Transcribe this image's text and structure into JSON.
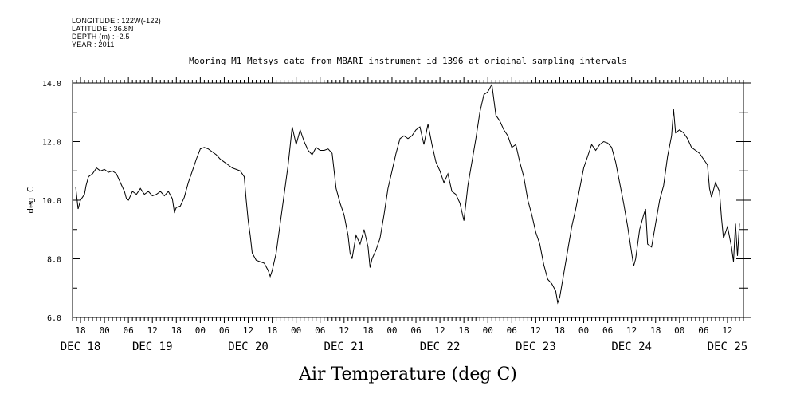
{
  "header": {
    "longitude": "LONGITUDE : 122W(-122)",
    "latitude": "LATITUDE : 36.8N",
    "depth": "DEPTH (m) : -2.5",
    "year": "YEAR : 2011"
  },
  "chart_data": {
    "type": "line",
    "title": "Mooring M1 Metsys data from MBARI instrument id 1396 at original sampling intervals",
    "xlabel": "Air Temperature (deg C)",
    "ylabel": "deg C",
    "x_unit": "hours",
    "x_range": [
      -8,
      160
    ],
    "ylim": [
      6.0,
      14.0
    ],
    "y_ticks": [
      "6.0",
      "8.0",
      "10.0",
      "12.0",
      "14.0"
    ],
    "hour_ticks": [
      {
        "x": -6,
        "label": "18"
      },
      {
        "x": 0,
        "label": "00"
      },
      {
        "x": 6,
        "label": "06"
      },
      {
        "x": 12,
        "label": "12"
      },
      {
        "x": 18,
        "label": "18"
      },
      {
        "x": 24,
        "label": "00"
      },
      {
        "x": 30,
        "label": "06"
      },
      {
        "x": 36,
        "label": "12"
      },
      {
        "x": 42,
        "label": "18"
      },
      {
        "x": 48,
        "label": "00"
      },
      {
        "x": 54,
        "label": "06"
      },
      {
        "x": 60,
        "label": "12"
      },
      {
        "x": 66,
        "label": "18"
      },
      {
        "x": 72,
        "label": "00"
      },
      {
        "x": 78,
        "label": "06"
      },
      {
        "x": 84,
        "label": "12"
      },
      {
        "x": 90,
        "label": "18"
      },
      {
        "x": 96,
        "label": "00"
      },
      {
        "x": 102,
        "label": "06"
      },
      {
        "x": 108,
        "label": "12"
      },
      {
        "x": 114,
        "label": "18"
      },
      {
        "x": 120,
        "label": "00"
      },
      {
        "x": 126,
        "label": "06"
      },
      {
        "x": 132,
        "label": "12"
      },
      {
        "x": 138,
        "label": "18"
      },
      {
        "x": 144,
        "label": "00"
      },
      {
        "x": 150,
        "label": "06"
      },
      {
        "x": 156,
        "label": "12"
      }
    ],
    "day_labels": [
      {
        "x": -6,
        "label": "DEC 18"
      },
      {
        "x": 12,
        "label": "DEC 19"
      },
      {
        "x": 36,
        "label": "DEC 20"
      },
      {
        "x": 60,
        "label": "DEC 21"
      },
      {
        "x": 84,
        "label": "DEC 22"
      },
      {
        "x": 108,
        "label": "DEC 23"
      },
      {
        "x": 132,
        "label": "DEC 24"
      },
      {
        "x": 156,
        "label": "DEC 25"
      }
    ],
    "series": [
      {
        "color": "#000000",
        "points": [
          [
            -7.2,
            10.45
          ],
          [
            -6.6,
            9.7
          ],
          [
            -6.0,
            10.0
          ],
          [
            -5.5,
            10.1
          ],
          [
            -5.0,
            10.2
          ],
          [
            -4.6,
            10.5
          ],
          [
            -4.0,
            10.8
          ],
          [
            -3.0,
            10.9
          ],
          [
            -2.0,
            11.1
          ],
          [
            -1.0,
            11.0
          ],
          [
            0.0,
            11.05
          ],
          [
            1.0,
            10.95
          ],
          [
            2.0,
            11.0
          ],
          [
            3.0,
            10.9
          ],
          [
            4.0,
            10.6
          ],
          [
            5.0,
            10.3
          ],
          [
            5.5,
            10.05
          ],
          [
            6.0,
            10.0
          ],
          [
            7.0,
            10.3
          ],
          [
            8.0,
            10.2
          ],
          [
            9.0,
            10.4
          ],
          [
            10.0,
            10.2
          ],
          [
            11.0,
            10.3
          ],
          [
            12.0,
            10.15
          ],
          [
            13.0,
            10.2
          ],
          [
            14.0,
            10.3
          ],
          [
            15.0,
            10.15
          ],
          [
            16.0,
            10.3
          ],
          [
            17.0,
            10.05
          ],
          [
            17.5,
            9.6
          ],
          [
            18.0,
            9.75
          ],
          [
            19.0,
            9.8
          ],
          [
            20.0,
            10.1
          ],
          [
            21.0,
            10.6
          ],
          [
            22.0,
            11.0
          ],
          [
            23.0,
            11.4
          ],
          [
            24.0,
            11.75
          ],
          [
            25.0,
            11.8
          ],
          [
            26.0,
            11.75
          ],
          [
            27.0,
            11.65
          ],
          [
            28.0,
            11.55
          ],
          [
            29.0,
            11.4
          ],
          [
            30.0,
            11.3
          ],
          [
            31.0,
            11.2
          ],
          [
            32.0,
            11.1
          ],
          [
            33.0,
            11.05
          ],
          [
            34.0,
            11.0
          ],
          [
            35.0,
            10.8
          ],
          [
            35.5,
            10.0
          ],
          [
            36.0,
            9.3
          ],
          [
            36.5,
            8.8
          ],
          [
            37.0,
            8.2
          ],
          [
            38.0,
            7.95
          ],
          [
            39.0,
            7.9
          ],
          [
            40.0,
            7.85
          ],
          [
            41.0,
            7.6
          ],
          [
            41.5,
            7.4
          ],
          [
            42.0,
            7.6
          ],
          [
            43.0,
            8.2
          ],
          [
            44.0,
            9.2
          ],
          [
            45.0,
            10.2
          ],
          [
            46.0,
            11.2
          ],
          [
            47.0,
            12.5
          ],
          [
            48.0,
            11.9
          ],
          [
            49.0,
            12.4
          ],
          [
            50.0,
            12.0
          ],
          [
            51.0,
            11.7
          ],
          [
            52.0,
            11.55
          ],
          [
            53.0,
            11.8
          ],
          [
            54.0,
            11.7
          ],
          [
            55.0,
            11.7
          ],
          [
            56.0,
            11.75
          ],
          [
            57.0,
            11.6
          ],
          [
            57.5,
            11.0
          ],
          [
            58.0,
            10.4
          ],
          [
            59.0,
            9.9
          ],
          [
            60.0,
            9.5
          ],
          [
            61.0,
            8.8
          ],
          [
            61.5,
            8.2
          ],
          [
            62.0,
            8.0
          ],
          [
            63.0,
            8.8
          ],
          [
            64.0,
            8.5
          ],
          [
            65.0,
            9.0
          ],
          [
            66.0,
            8.4
          ],
          [
            66.5,
            7.7
          ],
          [
            67.0,
            8.0
          ],
          [
            68.0,
            8.3
          ],
          [
            69.0,
            8.7
          ],
          [
            70.0,
            9.5
          ],
          [
            71.0,
            10.4
          ],
          [
            72.0,
            11.0
          ],
          [
            73.0,
            11.6
          ],
          [
            74.0,
            12.1
          ],
          [
            75.0,
            12.2
          ],
          [
            76.0,
            12.1
          ],
          [
            77.0,
            12.2
          ],
          [
            78.0,
            12.4
          ],
          [
            79.0,
            12.5
          ],
          [
            80.0,
            11.9
          ],
          [
            81.0,
            12.6
          ],
          [
            82.0,
            11.9
          ],
          [
            83.0,
            11.3
          ],
          [
            84.0,
            11.0
          ],
          [
            85.0,
            10.6
          ],
          [
            86.0,
            10.9
          ],
          [
            87.0,
            10.3
          ],
          [
            88.0,
            10.2
          ],
          [
            89.0,
            9.9
          ],
          [
            90.0,
            9.3
          ],
          [
            91.0,
            10.5
          ],
          [
            92.0,
            11.3
          ],
          [
            93.0,
            12.1
          ],
          [
            94.0,
            13.0
          ],
          [
            95.0,
            13.6
          ],
          [
            96.0,
            13.7
          ],
          [
            97.0,
            13.95
          ],
          [
            98.0,
            12.9
          ],
          [
            99.0,
            12.7
          ],
          [
            100.0,
            12.4
          ],
          [
            101.0,
            12.2
          ],
          [
            102.0,
            11.8
          ],
          [
            103.0,
            11.9
          ],
          [
            104.0,
            11.3
          ],
          [
            105.0,
            10.8
          ],
          [
            106.0,
            10.0
          ],
          [
            107.0,
            9.5
          ],
          [
            108.0,
            8.9
          ],
          [
            109.0,
            8.5
          ],
          [
            110.0,
            7.8
          ],
          [
            111.0,
            7.3
          ],
          [
            112.0,
            7.15
          ],
          [
            113.0,
            6.9
          ],
          [
            113.5,
            6.5
          ],
          [
            114.0,
            6.7
          ],
          [
            115.0,
            7.5
          ],
          [
            116.0,
            8.3
          ],
          [
            117.0,
            9.1
          ],
          [
            118.0,
            9.7
          ],
          [
            119.0,
            10.4
          ],
          [
            120.0,
            11.1
          ],
          [
            121.0,
            11.5
          ],
          [
            122.0,
            11.9
          ],
          [
            123.0,
            11.7
          ],
          [
            124.0,
            11.9
          ],
          [
            125.0,
            12.0
          ],
          [
            126.0,
            11.95
          ],
          [
            127.0,
            11.8
          ],
          [
            128.0,
            11.3
          ],
          [
            129.0,
            10.6
          ],
          [
            130.0,
            9.9
          ],
          [
            131.0,
            9.1
          ],
          [
            132.0,
            8.2
          ],
          [
            132.5,
            7.75
          ],
          [
            133.0,
            8.0
          ],
          [
            134.0,
            9.0
          ],
          [
            135.0,
            9.5
          ],
          [
            135.5,
            9.7
          ],
          [
            136.0,
            8.5
          ],
          [
            137.0,
            8.4
          ],
          [
            138.0,
            9.2
          ],
          [
            139.0,
            10.0
          ],
          [
            140.0,
            10.5
          ],
          [
            141.0,
            11.5
          ],
          [
            142.0,
            12.2
          ],
          [
            142.5,
            13.1
          ],
          [
            143.0,
            12.3
          ],
          [
            144.0,
            12.4
          ],
          [
            145.0,
            12.3
          ],
          [
            146.0,
            12.1
          ],
          [
            147.0,
            11.8
          ],
          [
            148.0,
            11.7
          ],
          [
            149.0,
            11.6
          ],
          [
            150.0,
            11.4
          ],
          [
            151.0,
            11.2
          ],
          [
            151.5,
            10.4
          ],
          [
            152.0,
            10.1
          ],
          [
            153.0,
            10.6
          ],
          [
            154.0,
            10.3
          ],
          [
            154.5,
            9.4
          ],
          [
            155.0,
            8.7
          ],
          [
            156.0,
            9.1
          ],
          [
            157.0,
            8.4
          ],
          [
            157.5,
            7.9
          ],
          [
            158.0,
            9.2
          ],
          [
            158.5,
            8.1
          ],
          [
            159.0,
            9.2
          ]
        ]
      }
    ]
  }
}
